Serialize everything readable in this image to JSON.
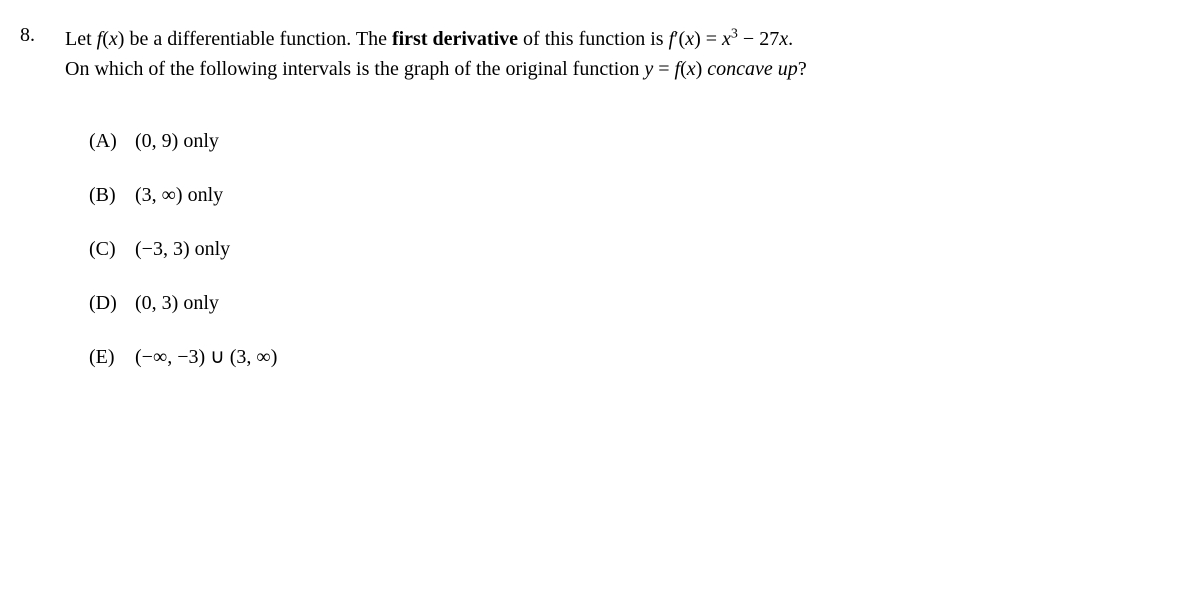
{
  "problem": {
    "number": "8.",
    "question_part1": "Let ",
    "fx": "f",
    "paren_open": "(",
    "x": "x",
    "paren_close": ")",
    "question_part2": " be a differentiable function.  The ",
    "bold_text": "first derivative",
    "question_part3": " of this function is ",
    "fprime": "f",
    "prime": "′",
    "equals": " = ",
    "x_var": "x",
    "exponent": "3",
    "minus": " − 27",
    "x2": "x",
    "period": ".",
    "question_line2_part1": "On which of the following intervals is the graph of the original function ",
    "y": "y",
    "eq2": " = ",
    "fx2": "f",
    "italic_end": "concave up",
    "qmark": "?"
  },
  "options": {
    "a": {
      "label": "(A)",
      "interval": "(0, 9)",
      "suffix": " only"
    },
    "b": {
      "label": "(B)",
      "interval": "(3, ∞)",
      "suffix": " only"
    },
    "c": {
      "label": "(C)",
      "interval": "(−3, 3)",
      "suffix": " only"
    },
    "d": {
      "label": "(D)",
      "interval": "(0, 3)",
      "suffix": " only"
    },
    "e": {
      "label": "(E)",
      "interval": "(−∞, −3) ∪ (3, ∞)",
      "suffix": ""
    }
  }
}
